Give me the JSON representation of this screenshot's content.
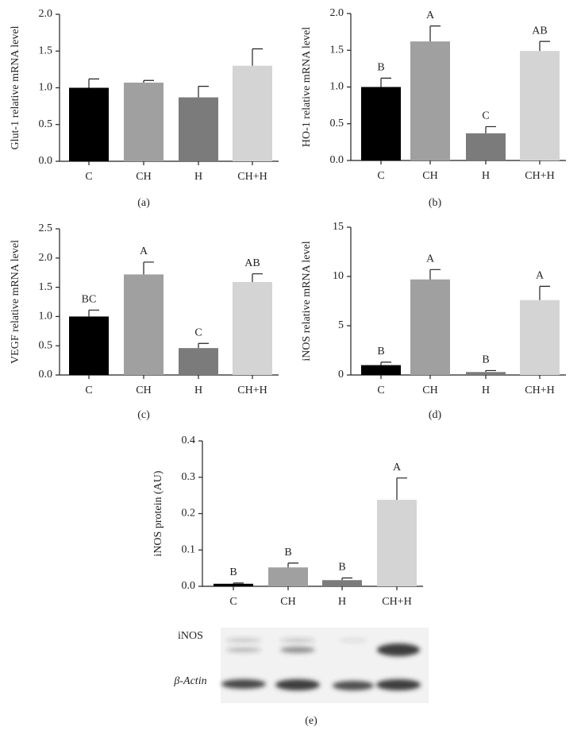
{
  "chart_data": [
    {
      "type": "bar",
      "ylabel": "Glut-1 relative mRNA level",
      "caption": "(a)",
      "categories": [
        "C",
        "CH",
        "H",
        "CH+H"
      ],
      "values": [
        1.0,
        1.07,
        0.87,
        1.3
      ],
      "errors": [
        0.12,
        0.03,
        0.15,
        0.23
      ],
      "colors": [
        "#000000",
        "#a0a0a0",
        "#7b7b7b",
        "#d4d4d4"
      ],
      "ylim": [
        0,
        2
      ],
      "yticks": [
        {
          "value": 0,
          "label": "0.0"
        },
        0.5,
        {
          "value": 1,
          "label": "1.0"
        },
        1.5,
        {
          "value": 2,
          "label": "2.0"
        }
      ]
    },
    {
      "type": "bar",
      "ylabel": "HO-1 relative mRNA level",
      "caption": "(b)",
      "categories": [
        "C",
        "CH",
        "H",
        "CH+H"
      ],
      "values": [
        1.0,
        1.62,
        0.37,
        1.49
      ],
      "errors": [
        0.12,
        0.21,
        0.09,
        0.13
      ],
      "annotations": [
        "B",
        "A",
        "C",
        "AB"
      ],
      "colors": [
        "#000000",
        "#a0a0a0",
        "#7b7b7b",
        "#d4d4d4"
      ],
      "ylim": [
        0,
        2
      ],
      "yticks": [
        {
          "value": 0,
          "label": "0.0"
        },
        0.5,
        {
          "value": 1,
          "label": "1.0"
        },
        1.5,
        {
          "value": 2,
          "label": "2.0"
        }
      ]
    },
    {
      "type": "bar",
      "ylabel": "VEGF relative mRNA level",
      "caption": "(c)",
      "categories": [
        "C",
        "CH",
        "H",
        "CH+H"
      ],
      "values": [
        1.0,
        1.72,
        0.46,
        1.59
      ],
      "errors": [
        0.11,
        0.21,
        0.08,
        0.14
      ],
      "annotations": [
        "BC",
        "A",
        "C",
        "AB"
      ],
      "colors": [
        "#000000",
        "#a0a0a0",
        "#7b7b7b",
        "#d4d4d4"
      ],
      "ylim": [
        0,
        2.5
      ],
      "yticks": [
        {
          "value": 0,
          "label": "0.0"
        },
        0.5,
        {
          "value": 1,
          "label": "1.0"
        },
        1.5,
        {
          "value": 2,
          "label": "2.0"
        },
        2.5
      ]
    },
    {
      "type": "bar",
      "ylabel": "iNOS relative mRNA level",
      "caption": "(d)",
      "categories": [
        "C",
        "CH",
        "H",
        "CH+H"
      ],
      "values": [
        1.0,
        9.7,
        0.3,
        7.6
      ],
      "errors": [
        0.3,
        1.0,
        0.15,
        1.4
      ],
      "annotations": [
        "B",
        "A",
        "B",
        "A"
      ],
      "colors": [
        "#000000",
        "#a0a0a0",
        "#7b7b7b",
        "#d4d4d4"
      ],
      "ylim": [
        0,
        15
      ],
      "yticks": [
        0,
        5,
        10,
        15
      ]
    },
    {
      "type": "bar",
      "ylabel": "iNOS protein (AU)",
      "caption": "(e)",
      "categories": [
        "C",
        "CH",
        "H",
        "CH+H"
      ],
      "values": [
        0.007,
        0.052,
        0.017,
        0.238
      ],
      "errors": [
        0.002,
        0.012,
        0.006,
        0.06
      ],
      "annotations": [
        "B",
        "B",
        "B",
        "A"
      ],
      "colors": [
        "#000000",
        "#a0a0a0",
        "#7b7b7b",
        "#d4d4d4"
      ],
      "ylim": [
        0,
        0.4
      ],
      "yticks": [
        {
          "value": 0,
          "label": "0.0"
        },
        0.1,
        0.2,
        0.3,
        0.4
      ],
      "blot_labels": [
        "iNOS",
        "β-Actin"
      ]
    }
  ]
}
